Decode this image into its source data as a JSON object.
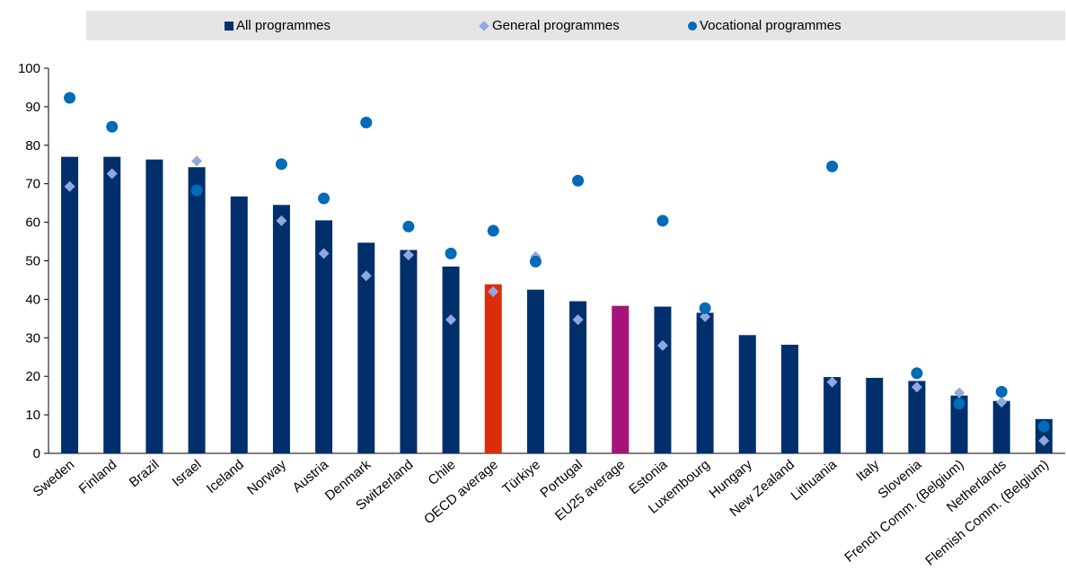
{
  "legend": {
    "all": "All programmes",
    "general": "General programmes",
    "vocational": "Vocational programmes"
  },
  "colors": {
    "bar": "#002f6c",
    "oecd_bar": "#dc2d0a",
    "eu_bar": "#a6147a",
    "general": "#8fa9dc",
    "vocational": "#006bb6",
    "legend_bg": "#e5e5e5"
  },
  "chart_data": {
    "type": "bar",
    "ylim": [
      0,
      100
    ],
    "yticks": [
      0,
      10,
      20,
      30,
      40,
      50,
      60,
      70,
      80,
      90,
      100
    ],
    "grid": false,
    "legend_position": "top",
    "categories": [
      "Sweden",
      "Finland",
      "Brazil",
      "Israel",
      "Iceland",
      "Norway",
      "Austria",
      "Denmark",
      "Switzerland",
      "Chile",
      "OECD average",
      "Türkiye",
      "Portugal",
      "EU25 average",
      "Estonia",
      "Luxembourg",
      "Hungary",
      "New Zealand",
      "Lithuania",
      "Italy",
      "Slovenia",
      "French Comm. (Belgium)",
      "Netherlands",
      "Flemish Comm. (Belgium)"
    ],
    "series": [
      {
        "name": "All programmes",
        "kind": "bar",
        "values": [
          77,
          77,
          76.3,
          74.3,
          66.7,
          64.5,
          60.5,
          54.7,
          52.8,
          48.5,
          43.9,
          42.5,
          39.5,
          38.3,
          38.1,
          36.5,
          30.7,
          28.2,
          19.8,
          19.6,
          18.8,
          15,
          13.6,
          8.9
        ]
      },
      {
        "name": "General programmes",
        "kind": "diamond",
        "values": [
          69.3,
          72.6,
          null,
          75.9,
          null,
          60.4,
          51.9,
          46.1,
          51.5,
          34.7,
          42,
          51.1,
          34.7,
          null,
          28,
          35.5,
          null,
          null,
          18.5,
          null,
          17.2,
          15.7,
          13.3,
          3.3
        ]
      },
      {
        "name": "Vocational programmes",
        "kind": "circle",
        "values": [
          92.3,
          84.8,
          null,
          68.3,
          null,
          75.1,
          66.2,
          85.9,
          58.9,
          51.9,
          57.8,
          49.8,
          70.8,
          null,
          60.4,
          37.7,
          null,
          null,
          74.5,
          null,
          20.8,
          12.9,
          16,
          7
        ]
      }
    ],
    "highlight": {
      "OECD average": "oecd",
      "EU25 average": "eu"
    }
  }
}
